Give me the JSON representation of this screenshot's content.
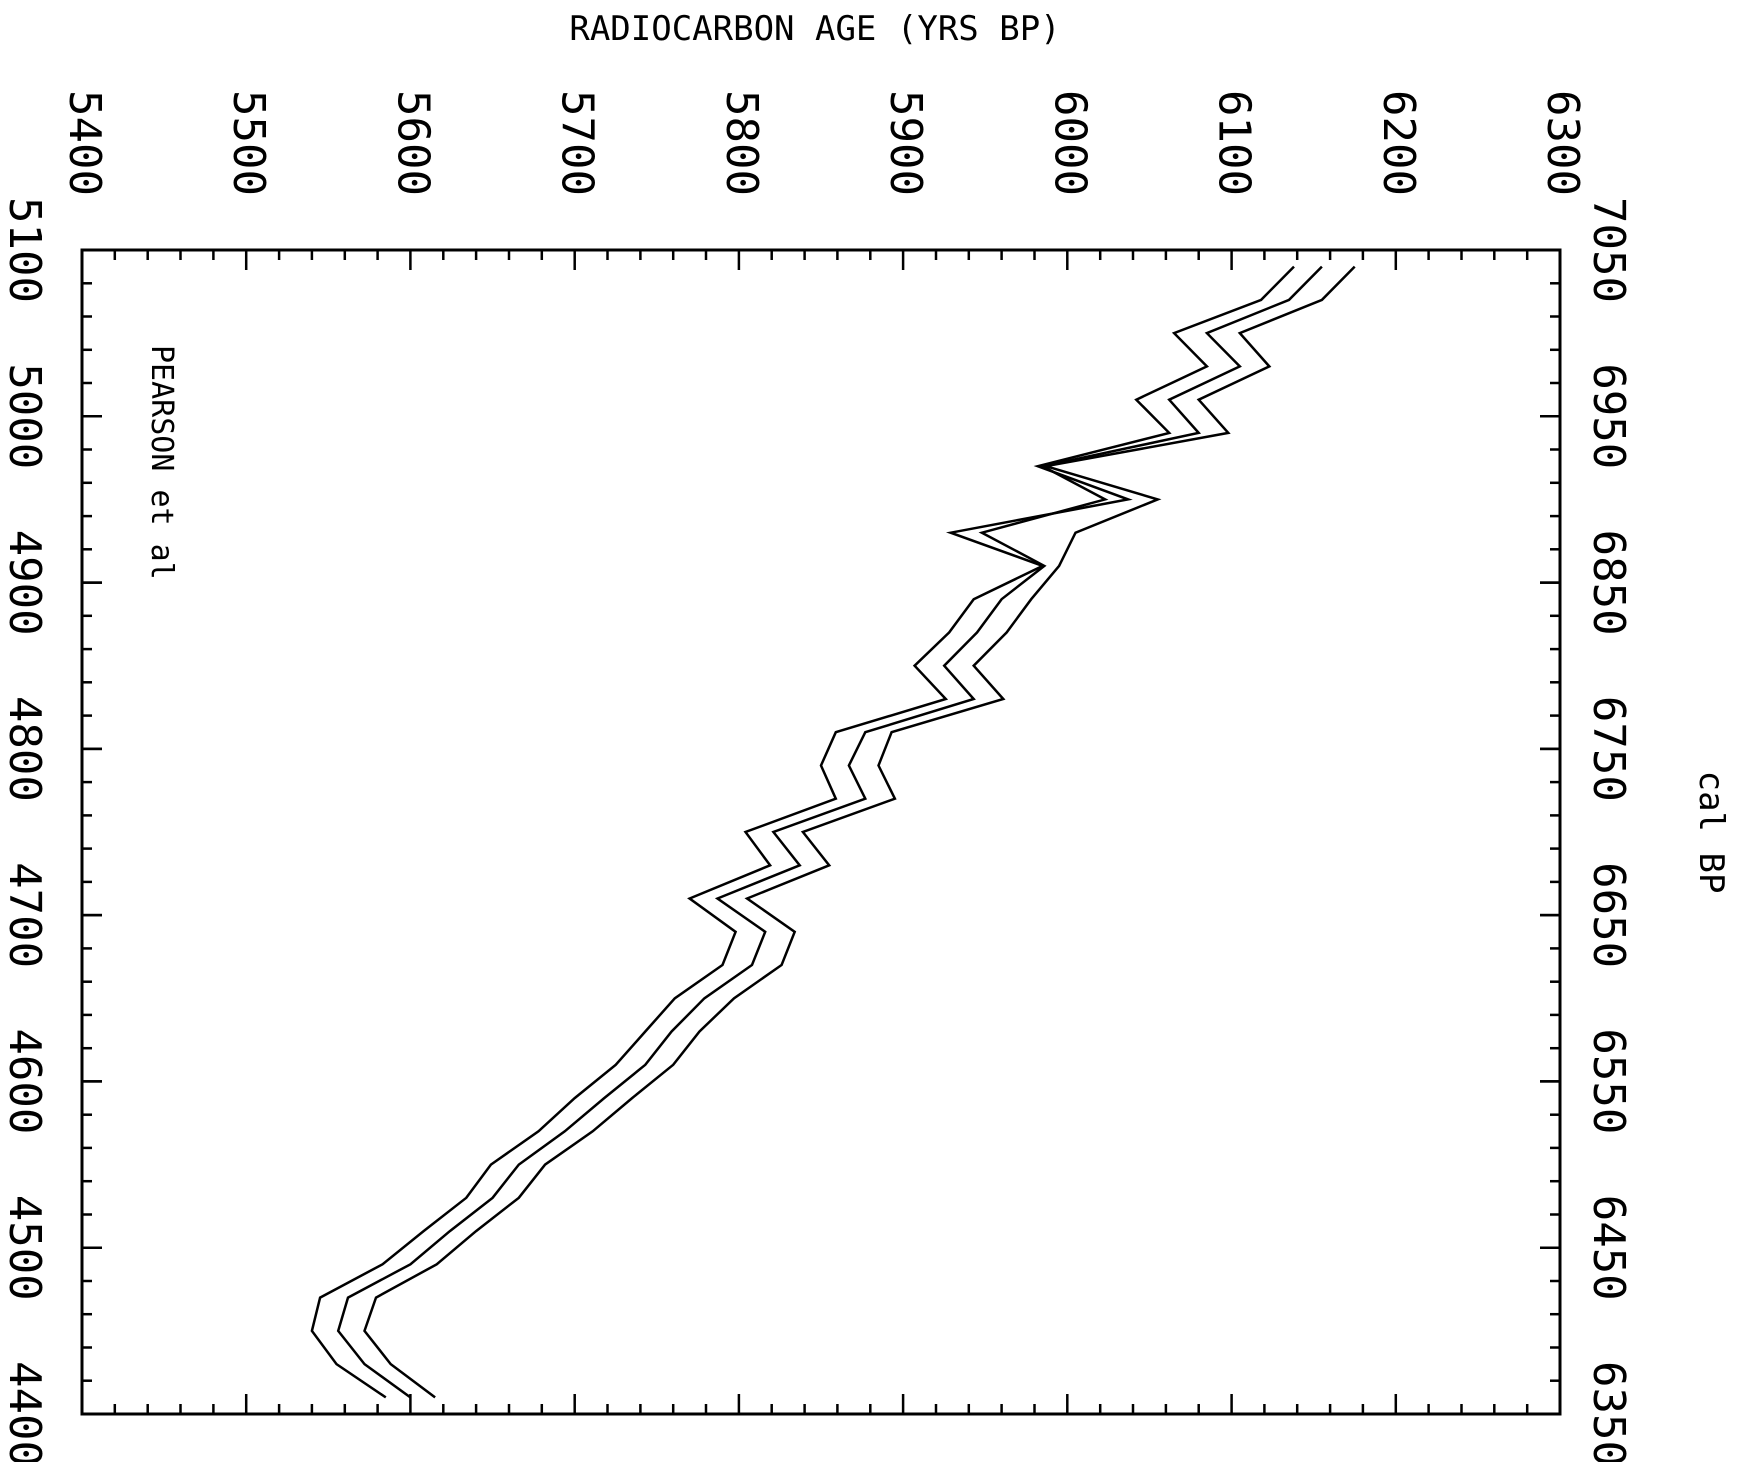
{
  "chart_data": {
    "type": "line",
    "title": "",
    "annotation": "PEARSON et al",
    "xlabel": "RADIOCARBON AGE (YRS BP)",
    "ylabel": "cal BP",
    "ylabel_secondary": "",
    "xlim": [
      5400,
      6300
    ],
    "ylim": [
      6350,
      7050
    ],
    "ylim_secondary": [
      4400,
      5100
    ],
    "x_ticks": [
      5400,
      5500,
      5600,
      5700,
      5800,
      5900,
      6000,
      6100,
      6200,
      6300
    ],
    "y_ticks": [
      7050,
      6950,
      6850,
      6750,
      6650,
      6550,
      6450,
      6350
    ],
    "y_ticks_secondary": [
      5100,
      5000,
      4900,
      4800,
      4700,
      4600,
      4500,
      4400
    ],
    "y": [
      7040,
      7020,
      7000,
      6980,
      6960,
      6940,
      6920,
      6900,
      6880,
      6860,
      6840,
      6820,
      6800,
      6780,
      6760,
      6740,
      6720,
      6700,
      6680,
      6660,
      6640,
      6620,
      6600,
      6580,
      6560,
      6540,
      6520,
      6500,
      6480,
      6460,
      6440,
      6420,
      6400,
      6380,
      6360
    ],
    "series": [
      {
        "values": [
          6138,
          6118,
          6065,
          6085,
          6042,
          6062,
          5982,
          6037,
          5929,
          5985,
          5943,
          5928,
          5907,
          5926,
          5859,
          5850,
          5859,
          5804,
          5819,
          5770,
          5798,
          5790,
          5761,
          5743,
          5725,
          5700,
          5678,
          5649,
          5634,
          5608,
          5583,
          5545,
          5540,
          5555,
          5585
        ]
      },
      {
        "values": [
          6155,
          6135,
          6085,
          6105,
          6062,
          6080,
          5985,
          6023,
          5948,
          5986,
          5960,
          5945,
          5925,
          5943,
          5877,
          5867,
          5877,
          5821,
          5837,
          5787,
          5816,
          5808,
          5779,
          5759,
          5743,
          5718,
          5694,
          5666,
          5650,
          5624,
          5600,
          5562,
          5556,
          5572,
          5600
        ]
      },
      {
        "values": [
          6175,
          6155,
          6105,
          6123,
          6080,
          6098,
          5987,
          6055,
          6005,
          5995,
          5978,
          5963,
          5943,
          5961,
          5893,
          5885,
          5895,
          5839,
          5855,
          5805,
          5834,
          5826,
          5797,
          5776,
          5760,
          5735,
          5711,
          5682,
          5666,
          5640,
          5616,
          5579,
          5572,
          5588,
          5615
        ]
      }
    ],
    "grid": false
  }
}
